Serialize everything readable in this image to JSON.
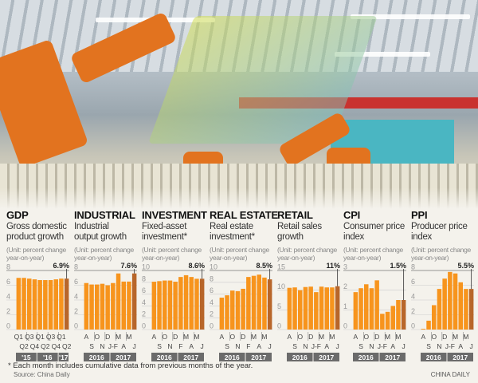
{
  "colors": {
    "bar": "#f7941d",
    "last_bar": "#b8662a",
    "year_box": "#6b6b6b",
    "grid": "#bbbbbb"
  },
  "footnote": "* Each month includes cumulative data from previous months of the year.",
  "source": "Source: China Daily",
  "brand": "CHINA DAILY",
  "chart_data": [
    {
      "type": "bar",
      "title": "GDP",
      "subtitle": [
        "Gross domestic",
        "product growth"
      ],
      "unit": [
        "(Unit: percent change",
        "year-on-year)"
      ],
      "yticks": [
        0,
        2,
        4,
        6,
        8
      ],
      "ylim": [
        0,
        8
      ],
      "categories": [
        "Q1",
        "Q2",
        "Q3",
        "Q4",
        "Q1",
        "Q2",
        "Q3",
        "Q4",
        "Q1",
        "Q2"
      ],
      "values": [
        7.0,
        7.0,
        6.9,
        6.8,
        6.7,
        6.7,
        6.7,
        6.8,
        6.9,
        6.9
      ],
      "latest_label": "6.9%",
      "groups": [
        {
          "label": "'15",
          "count": 4
        },
        {
          "label": "'16",
          "count": 4
        },
        {
          "label": "'17",
          "count": 2
        }
      ]
    },
    {
      "type": "bar",
      "title": "INDUSTRIAL",
      "subtitle": [
        "Industrial",
        "output growth"
      ],
      "unit": [
        "(Unit: percent change",
        "year-on-year)"
      ],
      "yticks": [
        0,
        2,
        4,
        6,
        8
      ],
      "ylim": [
        0,
        8
      ],
      "categories": [
        "A",
        "S",
        "O",
        "N",
        "D",
        "J-F",
        "M",
        "A",
        "M",
        "J"
      ],
      "values": [
        6.3,
        6.1,
        6.1,
        6.2,
        6.0,
        6.3,
        7.6,
        6.5,
        6.5,
        7.6
      ],
      "latest_label": "7.6%",
      "groups": [
        {
          "label": "2016",
          "count": 5
        },
        {
          "label": "2017",
          "count": 5
        }
      ]
    },
    {
      "type": "bar",
      "title": "INVESTMENT",
      "subtitle": [
        "Fixed-asset",
        "investment*"
      ],
      "unit": [
        "(Unit: percent change",
        "year-on-year)"
      ],
      "yticks": [
        0,
        2,
        4,
        6,
        8,
        10
      ],
      "ylim": [
        0,
        10
      ],
      "categories": [
        "A",
        "S",
        "O",
        "N",
        "D",
        "F",
        "M",
        "A",
        "M",
        "J"
      ],
      "values": [
        8.1,
        8.2,
        8.3,
        8.3,
        8.1,
        8.9,
        9.2,
        8.9,
        8.6,
        8.6
      ],
      "latest_label": "8.6%",
      "groups": [
        {
          "label": "2016",
          "count": 5
        },
        {
          "label": "2017",
          "count": 5
        }
      ]
    },
    {
      "type": "bar",
      "title": "REAL ESTATE",
      "subtitle": [
        "Real estate",
        "investment*"
      ],
      "unit": [
        "(Unit: percent change",
        "year-on-year)"
      ],
      "yticks": [
        0,
        2,
        4,
        6,
        8,
        10
      ],
      "ylim": [
        0,
        10
      ],
      "categories": [
        "A",
        "S",
        "O",
        "N",
        "D",
        "F",
        "M",
        "A",
        "M",
        "J"
      ],
      "values": [
        5.4,
        5.8,
        6.6,
        6.5,
        6.9,
        8.9,
        9.1,
        9.3,
        8.8,
        8.5
      ],
      "latest_label": "8.5%",
      "groups": [
        {
          "label": "2016",
          "count": 5
        },
        {
          "label": "2017",
          "count": 5
        }
      ]
    },
    {
      "type": "bar",
      "title": "RETAIL",
      "subtitle": [
        "Retail sales",
        "growth"
      ],
      "unit": [
        "(Unit: percent change",
        "year-on-year)"
      ],
      "yticks": [
        0,
        5,
        10,
        15
      ],
      "ylim": [
        0,
        15
      ],
      "categories": [
        "A",
        "S",
        "O",
        "N",
        "D",
        "J-F",
        "M",
        "A",
        "M",
        "J"
      ],
      "values": [
        10.6,
        10.7,
        10.0,
        10.8,
        10.9,
        9.5,
        10.9,
        10.7,
        10.7,
        11.0
      ],
      "latest_label": "11%",
      "groups": [
        {
          "label": "2016",
          "count": 5
        },
        {
          "label": "2017",
          "count": 5
        }
      ]
    },
    {
      "type": "bar",
      "title": "CPI",
      "subtitle": [
        "Consumer price",
        "index"
      ],
      "unit": [
        "(Unit: percent change",
        "year-on-year)"
      ],
      "yticks": [
        0,
        1,
        2,
        3
      ],
      "ylim": [
        0,
        3
      ],
      "categories": [
        "A",
        "S",
        "O",
        "N",
        "D",
        "J-F",
        "M",
        "A",
        "M",
        "J"
      ],
      "values": [
        1.9,
        2.1,
        2.3,
        2.1,
        2.5,
        0.8,
        0.9,
        1.2,
        1.5,
        1.5
      ],
      "latest_label": "1.5%",
      "groups": [
        {
          "label": "2016",
          "count": 5
        },
        {
          "label": "2017",
          "count": 5
        }
      ]
    },
    {
      "type": "bar",
      "title": "PPI",
      "subtitle": [
        "Producer price",
        "index"
      ],
      "unit": [
        "(Unit: percent change",
        "year-on-year)"
      ],
      "yticks": [
        0,
        2,
        4,
        6,
        8
      ],
      "ylim": [
        0,
        8
      ],
      "categories": [
        "A",
        "S",
        "O",
        "N",
        "D",
        "J-F",
        "M",
        "A",
        "M",
        "J"
      ],
      "values": [
        0.1,
        1.2,
        3.3,
        5.5,
        6.9,
        7.8,
        7.6,
        6.4,
        5.5,
        5.5
      ],
      "latest_label": "5.5%",
      "groups": [
        {
          "label": "2016",
          "count": 5
        },
        {
          "label": "2017",
          "count": 5
        }
      ]
    }
  ]
}
